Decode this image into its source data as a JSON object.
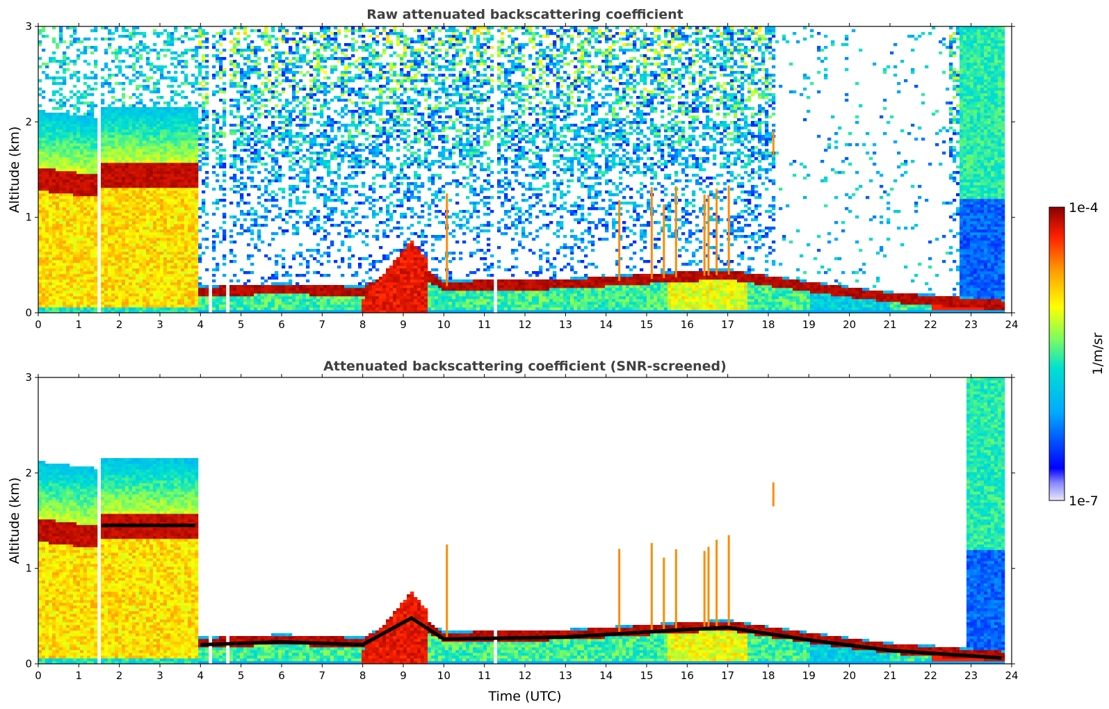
{
  "chart_data": [
    {
      "type": "heatmap",
      "title": "Raw attenuated backscattering coefficient",
      "xlabel": "",
      "ylabel": "Altitude (km)",
      "xlim": [
        0,
        24
      ],
      "ylim": [
        0,
        3
      ],
      "x_ticks": [
        "0",
        "1",
        "2",
        "3",
        "4",
        "5",
        "6",
        "7",
        "8",
        "9",
        "10",
        "11",
        "12",
        "13",
        "14",
        "15",
        "16",
        "17",
        "18",
        "19",
        "20",
        "21",
        "22",
        "23",
        "24"
      ],
      "y_ticks": [
        "0",
        "1",
        "2",
        "3"
      ],
      "layers": {
        "cloud_layer_0_4h_km": 1.4,
        "boundary_layer_top_km": [
          {
            "t": 4,
            "z": 0.22
          },
          {
            "t": 6,
            "z": 0.25
          },
          {
            "t": 8,
            "z": 0.22
          },
          {
            "t": 9.2,
            "z": 0.5
          },
          {
            "t": 10,
            "z": 0.28
          },
          {
            "t": 13,
            "z": 0.3
          },
          {
            "t": 16,
            "z": 0.38
          },
          {
            "t": 17,
            "z": 0.4
          },
          {
            "t": 19,
            "z": 0.27
          },
          {
            "t": 21,
            "z": 0.16
          },
          {
            "t": 23.8,
            "z": 0.08
          }
        ]
      }
    },
    {
      "type": "heatmap",
      "title": "Attenuated backscattering coefficient (SNR-screened)",
      "xlabel": "Time (UTC)",
      "ylabel": "Altitude (km)",
      "xlim": [
        0,
        24
      ],
      "ylim": [
        0,
        3
      ],
      "x_ticks": [
        "0",
        "1",
        "2",
        "3",
        "4",
        "5",
        "6",
        "7",
        "8",
        "9",
        "10",
        "11",
        "12",
        "13",
        "14",
        "15",
        "16",
        "17",
        "18",
        "19",
        "20",
        "21",
        "22",
        "23",
        "24"
      ],
      "y_ticks": [
        "0",
        "1",
        "2",
        "3"
      ]
    }
  ],
  "colorbar": {
    "label": "1/m/sr",
    "max_label": "1e-4",
    "min_label": "1e-7",
    "scale": "log",
    "range": [
      1e-07,
      0.0001
    ],
    "colormap": [
      "#e6e6fa",
      "#0000ff",
      "#00aaff",
      "#00e6c8",
      "#7cfc50",
      "#ffff00",
      "#ffa500",
      "#ff2a00",
      "#8b0000"
    ]
  }
}
